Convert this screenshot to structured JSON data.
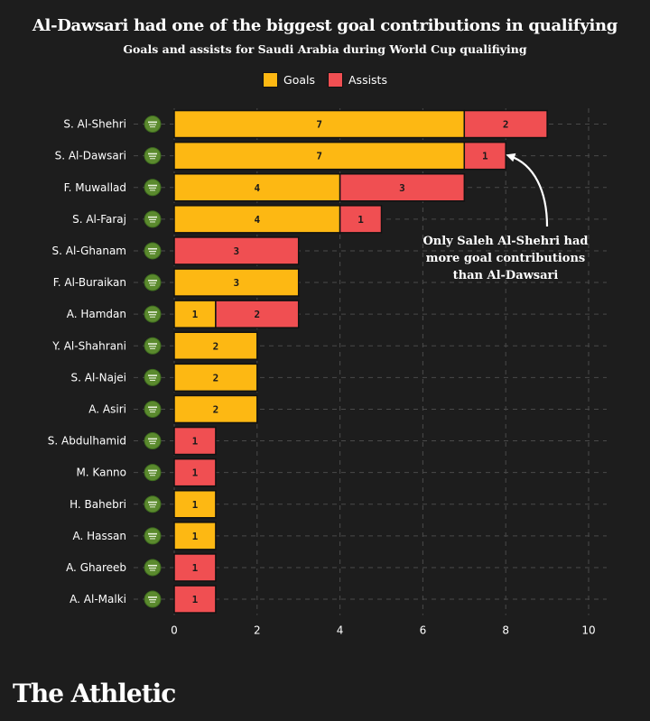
{
  "chart_data": {
    "type": "bar",
    "orientation": "horizontal",
    "stacked": true,
    "title": "Al-Dawsari had one of the biggest goal contributions in qualifying",
    "subtitle": "Goals and assists for Saudi Arabia during World Cup qualifiying",
    "categories": [
      "S. Al-Shehri",
      "S. Al-Dawsari",
      "F. Muwallad",
      "S. Al-Faraj",
      "S. Al-Ghanam",
      "F. Al-Buraikan",
      "A. Hamdan",
      "Y. Al-Shahrani",
      "S. Al-Najei",
      "A. Asiri",
      "S. Abdulhamid",
      "M. Kanno",
      "H. Bahebri",
      "A. Hassan",
      "A. Ghareeb",
      "A. Al-Malki"
    ],
    "series": [
      {
        "name": "Goals",
        "color": "#fdb813",
        "values": [
          7,
          7,
          4,
          4,
          0,
          3,
          1,
          2,
          2,
          2,
          0,
          0,
          1,
          1,
          0,
          0
        ]
      },
      {
        "name": "Assists",
        "color": "#f04f52",
        "values": [
          2,
          1,
          3,
          1,
          3,
          0,
          2,
          0,
          0,
          0,
          1,
          1,
          0,
          0,
          1,
          1
        ]
      }
    ],
    "xlim": [
      0,
      10
    ],
    "xticks": [
      "0",
      "2",
      "4",
      "6",
      "8",
      "10"
    ],
    "grid": true,
    "legend_position": "top-center",
    "annotation": {
      "lines": [
        "Only Saleh Al-Shehri had",
        "more goal contributions",
        "than Al-Dawsari"
      ],
      "target_category": "S. Al-Dawsari"
    },
    "badge_icon": "saudi-federation-crest-icon",
    "badge_color": "#5b8a2e"
  },
  "brand": "The Athletic"
}
